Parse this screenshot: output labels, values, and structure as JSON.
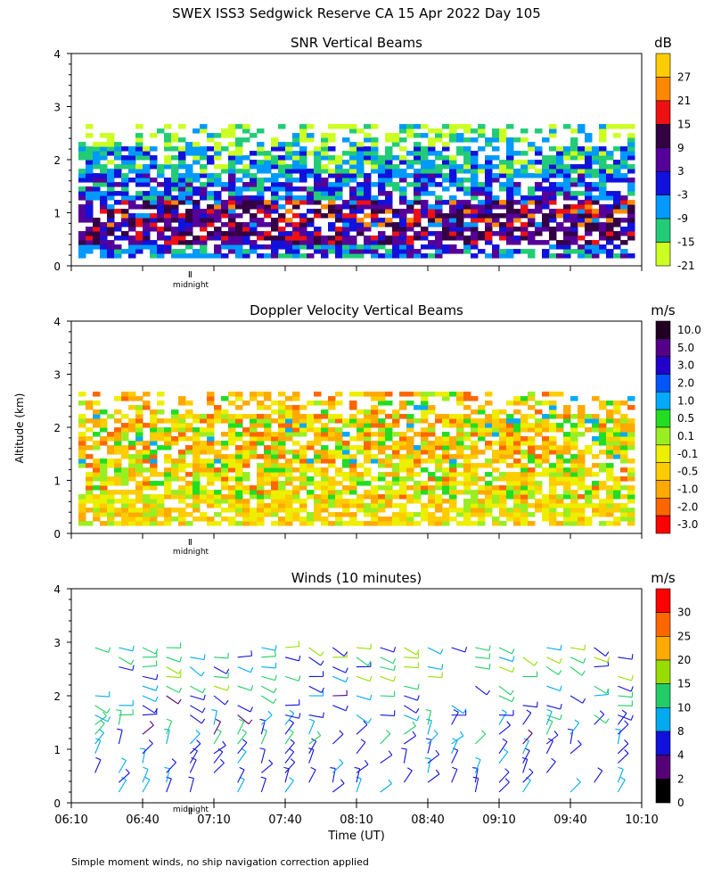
{
  "figure_title": "SWEX ISS3 Sedgwick Reserve CA  15 Apr 2022 Day 105",
  "y_axis_label": "Altitude (km)",
  "x_axis_label": "Time (UT)",
  "midnight_label": "midnight",
  "footnote": "Simple moment winds, no ship navigation correction applied",
  "chart_data": [
    {
      "type": "heatmap",
      "title": "SNR Vertical Beams",
      "colorbar_unit": "dB",
      "colorbar_ticks": [
        "27",
        "21",
        "15",
        "9",
        "3",
        "-3",
        "-9",
        "-15",
        "-21"
      ],
      "colorbar_colors": [
        "#ffcc00",
        "#ff8800",
        "#ee1111",
        "#330044",
        "#550099",
        "#1111dd",
        "#0099ff",
        "#22cc77",
        "#ccff22"
      ],
      "ylim": [
        0,
        4
      ],
      "yticks": [
        "0",
        "1",
        "2",
        "3",
        "4"
      ],
      "xlim": [
        "06:10",
        "10:10"
      ],
      "layers": [
        {
          "from_km": 0.15,
          "to_km": 0.35,
          "value_dB": -9
        },
        {
          "from_km": 0.35,
          "to_km": 0.7,
          "value_dB": 3
        },
        {
          "from_km": 0.7,
          "to_km": 1.2,
          "value_dB": -3
        },
        {
          "from_km": 1.2,
          "to_km": 1.7,
          "value_dB": -9
        },
        {
          "from_km": 1.7,
          "to_km": 2.3,
          "value_dB": -15
        },
        {
          "from_km": 2.3,
          "to_km": 3.0,
          "value_dB": -21
        }
      ]
    },
    {
      "type": "heatmap",
      "title": "Doppler Velocity Vertical Beams",
      "colorbar_unit": "m/s",
      "colorbar_ticks": [
        "10.0",
        "5.0",
        "3.0",
        "2.0",
        "1.0",
        "0.5",
        "0.1",
        "-0.1",
        "-0.5",
        "-1.0",
        "-2.0",
        "-3.0"
      ],
      "colorbar_colors": [
        "#220022",
        "#550088",
        "#2200cc",
        "#0055ff",
        "#00aaff",
        "#22dd22",
        "#99ee22",
        "#eeee00",
        "#ffcc00",
        "#ffaa00",
        "#ff6600",
        "#ff0000"
      ],
      "ylim": [
        0,
        4
      ],
      "yticks": [
        "0",
        "1",
        "2",
        "3",
        "4"
      ],
      "xlim": [
        "06:10",
        "10:10"
      ],
      "layers": [
        {
          "from_km": 0.15,
          "to_km": 0.6,
          "value_ms": -0.5
        },
        {
          "from_km": 0.6,
          "to_km": 1.3,
          "value_ms": -0.1
        },
        {
          "from_km": 1.3,
          "to_km": 2.4,
          "value_ms": -1.0
        }
      ]
    },
    {
      "type": "scatter",
      "title": "Winds (10 minutes)",
      "colorbar_unit": "m/s",
      "colorbar_ticks": [
        "30",
        "25",
        "20",
        "15",
        "10",
        "8",
        "4",
        "2",
        "0"
      ],
      "colorbar_colors": [
        "#ff0000",
        "#ff6600",
        "#ffaa00",
        "#99dd00",
        "#22cc66",
        "#00aaee",
        "#1111dd",
        "#550077",
        "#000000"
      ],
      "ylim": [
        0,
        4
      ],
      "yticks": [
        "0",
        "1",
        "2",
        "3",
        "4"
      ],
      "xlim": [
        "06:10",
        "10:10"
      ],
      "xticks": [
        "06:10",
        "06:40",
        "07:10",
        "07:40",
        "08:10",
        "08:40",
        "09:10",
        "09:40",
        "10:10"
      ]
    }
  ]
}
